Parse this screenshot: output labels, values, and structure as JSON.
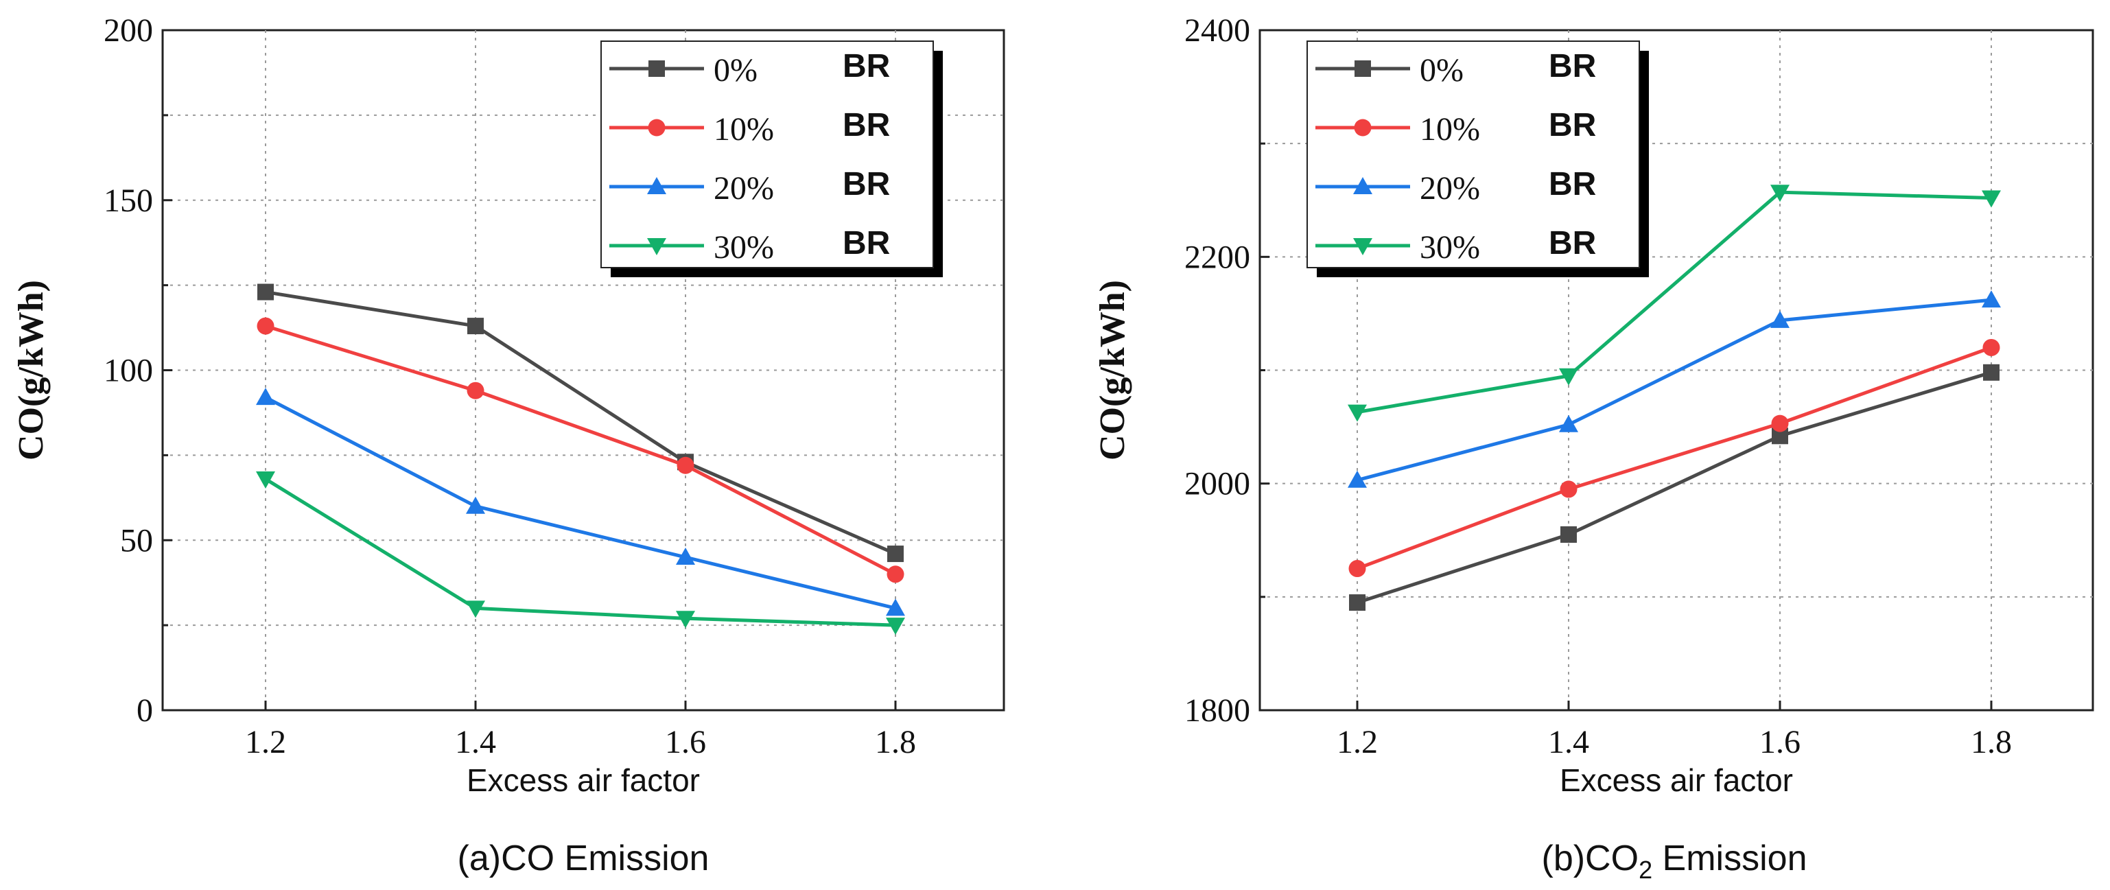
{
  "chart_data": [
    {
      "type": "line",
      "id": "co",
      "caption": "(a)CO Emission",
      "xlabel": "Excess air factor",
      "ylabel": "CO(g/kWh)",
      "x": [
        1.2,
        1.4,
        1.6,
        1.8
      ],
      "x_tick_labels": [
        "1.2",
        "1.4",
        "1.6",
        "1.8"
      ],
      "ylim": [
        0,
        200
      ],
      "y_ticks": [
        0,
        50,
        100,
        150,
        200
      ],
      "y_tick_labels": [
        "0",
        "50",
        "100",
        "150",
        "200"
      ],
      "grid": true,
      "legend_position": "top-right",
      "series": [
        {
          "name": "0%",
          "suffix": "BR",
          "color": "#4a4a4a",
          "marker": "square",
          "values": [
            123,
            113,
            73,
            46
          ]
        },
        {
          "name": "10%",
          "suffix": "BR",
          "color": "#f04040",
          "marker": "circle",
          "values": [
            113,
            94,
            72,
            40
          ]
        },
        {
          "name": "20%",
          "suffix": "BR",
          "color": "#1e78e6",
          "marker": "triangle-up",
          "values": [
            92,
            60,
            45,
            30
          ]
        },
        {
          "name": "30%",
          "suffix": "BR",
          "color": "#13b06a",
          "marker": "triangle-down",
          "values": [
            68,
            30,
            27,
            25
          ]
        }
      ]
    },
    {
      "type": "line",
      "id": "co2",
      "caption": "(b)CO",
      "caption_sub": "2",
      "caption_after": " Emission",
      "xlabel": "Excess air factor",
      "ylabel": "CO(g/kWh)",
      "x": [
        1.2,
        1.4,
        1.6,
        1.8
      ],
      "x_tick_labels": [
        "1.2",
        "1.4",
        "1.6",
        "1.8"
      ],
      "ylim": [
        1800,
        2400
      ],
      "y_ticks": [
        1800,
        2000,
        2200,
        2400
      ],
      "y_tick_labels": [
        "1800",
        "2000",
        "2200",
        "2400"
      ],
      "grid": true,
      "legend_position": "top-left",
      "series": [
        {
          "name": "0%",
          "suffix": "BR",
          "color": "#4a4a4a",
          "marker": "square",
          "values": [
            1895,
            1955,
            2042,
            2098
          ]
        },
        {
          "name": "10%",
          "suffix": "BR",
          "color": "#f04040",
          "marker": "circle",
          "values": [
            1925,
            1995,
            2053,
            2120
          ]
        },
        {
          "name": "20%",
          "suffix": "BR",
          "color": "#1e78e6",
          "marker": "triangle-up",
          "values": [
            2003,
            2052,
            2144,
            2162
          ]
        },
        {
          "name": "30%",
          "suffix": "BR",
          "color": "#13b06a",
          "marker": "triangle-down",
          "values": [
            2063,
            2095,
            2257,
            2252
          ]
        }
      ]
    }
  ]
}
